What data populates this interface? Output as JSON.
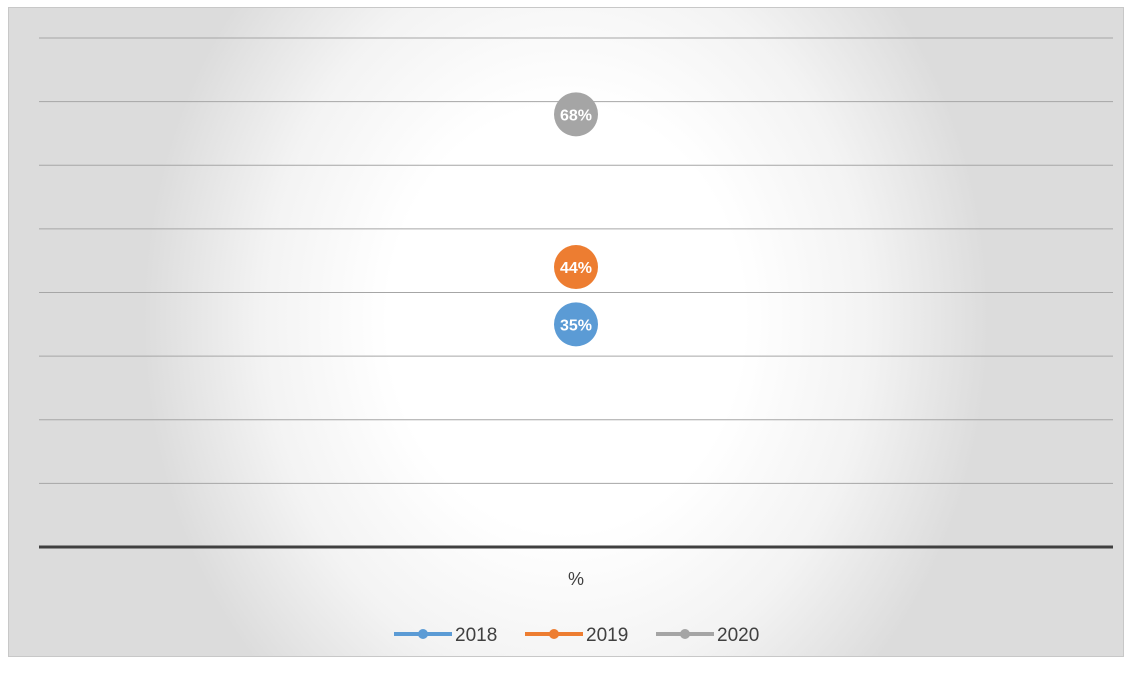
{
  "chart_data": {
    "type": "line",
    "categories": [
      "%"
    ],
    "ylim": [
      0,
      0.8
    ],
    "grid": true,
    "legend_position": "bottom",
    "series": [
      {
        "name": "2018",
        "values": [
          0.35
        ],
        "label": "35%",
        "color": "#5b9bd5"
      },
      {
        "name": "2019",
        "values": [
          0.44
        ],
        "label": "44%",
        "color": "#ed7d31"
      },
      {
        "name": "2020",
        "values": [
          0.68
        ],
        "label": "68%",
        "color": "#a5a5a5"
      }
    ]
  }
}
